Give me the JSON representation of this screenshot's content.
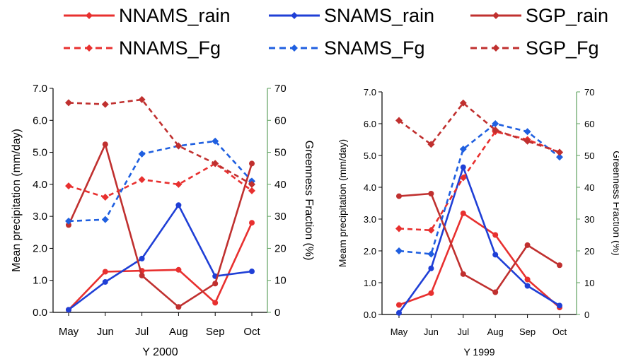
{
  "legend": {
    "items": [
      {
        "label": "NNAMS_rain",
        "color": "#e8302f",
        "dashed": false
      },
      {
        "label": "SNAMS_rain",
        "color": "#1f3fd6",
        "dashed": false
      },
      {
        "label": "SGP_rain",
        "color": "#c0302f",
        "dashed": false
      },
      {
        "label": "NNAMS_Fg",
        "color": "#e8302f",
        "dashed": true
      },
      {
        "label": "SNAMS_Fg",
        "color": "#1f5fe0",
        "dashed": true
      },
      {
        "label": "SGP_Fg",
        "color": "#c0302f",
        "dashed": true
      }
    ]
  },
  "chart_data": [
    {
      "type": "line",
      "title": "",
      "xlabel": "Y 2000",
      "ylabel": "Mean precipitation (mm/day)",
      "y2label": "Greenness Fraction (%)",
      "categories": [
        "May",
        "Jun",
        "Jul",
        "Aug",
        "Sep",
        "Oct"
      ],
      "ylim": [
        0,
        7
      ],
      "y2lim": [
        0,
        70
      ],
      "yticks": [
        "0.0",
        "1.0",
        "2.0",
        "3.0",
        "4.0",
        "5.0",
        "6.0",
        "7.0"
      ],
      "y2ticks": [
        "0",
        "10",
        "20",
        "30",
        "40",
        "50",
        "60",
        "70"
      ],
      "grid": false,
      "series": [
        {
          "name": "NNAMS_rain",
          "axis": "left",
          "values": [
            0.08,
            1.27,
            1.3,
            1.33,
            0.3,
            2.8
          ]
        },
        {
          "name": "SNAMS_rain",
          "axis": "left",
          "values": [
            0.08,
            0.95,
            1.68,
            3.35,
            1.13,
            1.28
          ]
        },
        {
          "name": "SGP_rain",
          "axis": "left",
          "values": [
            2.73,
            5.25,
            1.15,
            0.17,
            0.9,
            4.65
          ]
        },
        {
          "name": "NNAMS_Fg",
          "axis": "right",
          "values": [
            39.5,
            36.0,
            41.5,
            40.0,
            46.5,
            38.0
          ]
        },
        {
          "name": "SNAMS_Fg",
          "axis": "right",
          "values": [
            28.5,
            29.0,
            49.5,
            52.0,
            53.5,
            41.0
          ]
        },
        {
          "name": "SGP_Fg",
          "axis": "right",
          "values": [
            65.5,
            65.0,
            66.5,
            52.0,
            46.5,
            40.0
          ]
        }
      ]
    },
    {
      "type": "line",
      "title": "",
      "xlabel": "Y 1999",
      "ylabel": "Meam precipitation (mm/day)",
      "y2label": "Greenness Fraction (%)",
      "categories": [
        "May",
        "Jun",
        "Jul",
        "Aug",
        "Sep",
        "Oct"
      ],
      "ylim": [
        0,
        7
      ],
      "y2lim": [
        0,
        70
      ],
      "yticks": [
        "0.0",
        "1.0",
        "2.0",
        "3.0",
        "4.0",
        "5.0",
        "6.0",
        "7.0"
      ],
      "y2ticks": [
        "0",
        "10",
        "20",
        "30",
        "40",
        "50",
        "60",
        "70"
      ],
      "grid": false,
      "series": [
        {
          "name": "NNAMS_rain",
          "axis": "left",
          "values": [
            0.3,
            0.67,
            3.18,
            2.5,
            1.1,
            0.22
          ]
        },
        {
          "name": "SNAMS_rain",
          "axis": "left",
          "values": [
            0.05,
            1.45,
            4.63,
            1.88,
            0.9,
            0.28
          ]
        },
        {
          "name": "SGP_rain",
          "axis": "left",
          "values": [
            3.72,
            3.8,
            1.27,
            0.7,
            2.18,
            1.55
          ]
        },
        {
          "name": "NNAMS_Fg",
          "axis": "right",
          "values": [
            27.0,
            26.5,
            43.0,
            57.5,
            55.0,
            51.0
          ]
        },
        {
          "name": "SNAMS_Fg",
          "axis": "right",
          "values": [
            20.0,
            19.0,
            52.0,
            60.0,
            57.5,
            49.5
          ]
        },
        {
          "name": "SGP_Fg",
          "axis": "right",
          "values": [
            61.0,
            53.5,
            66.5,
            58.0,
            54.5,
            51.0
          ]
        }
      ]
    }
  ]
}
